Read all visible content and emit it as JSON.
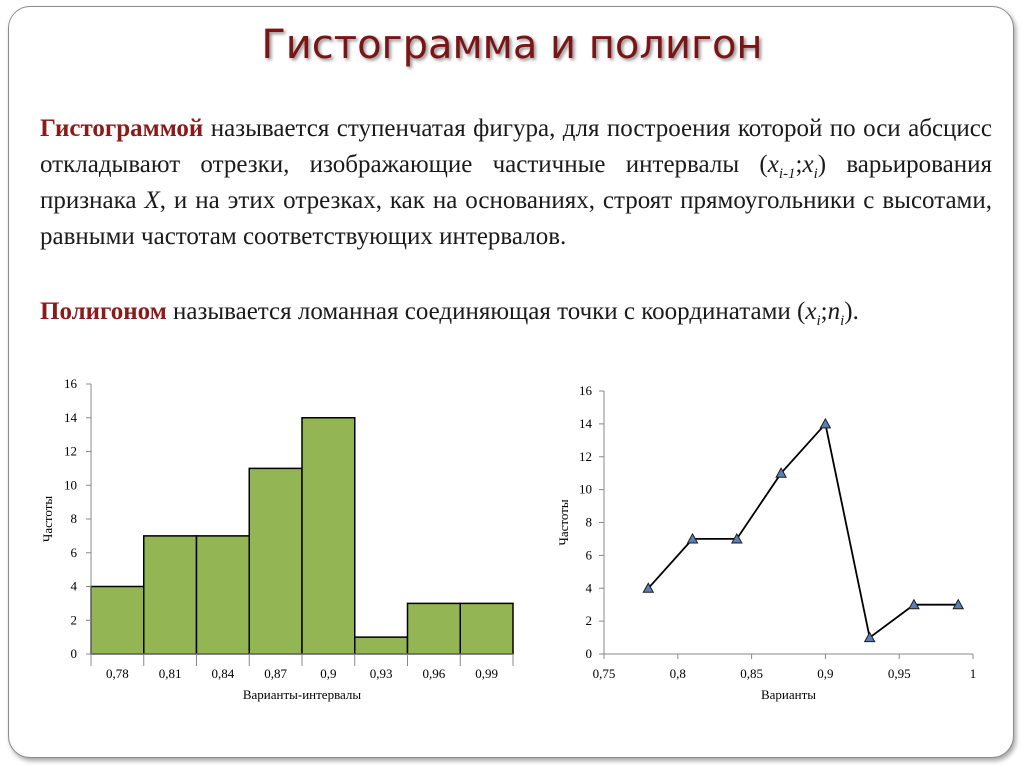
{
  "slide": {
    "title": "Гистограмма и полигон",
    "histogram_def": {
      "term": "Гистограммой",
      "t1": " называется ступенчатая фигура, для построения которой по оси абсцисс откладывают отрезки, изображающие частичные интервалы (",
      "x": "x",
      "sub1": "i-1",
      "t2": ";",
      "sub2": "i",
      "t3": ") варьирования признака ",
      "X": "X",
      "t4": ", и на этих отрезках, как на основаниях, строят прямоугольники с высотами, равными частотам соответствующих интервалов."
    },
    "polygon_def": {
      "term": "Полигоном",
      "t1": " называется ломанная соединяющая точки с координатами (",
      "x": "x",
      "sub_x": "i",
      "t2": ";",
      "n": "n",
      "sub_n": "i",
      "t3": ")."
    }
  },
  "chart_data": [
    {
      "type": "bar",
      "categories": [
        "0,78",
        "0,81",
        "0,84",
        "0,87",
        "0,9",
        "0,93",
        "0,96",
        "0,99"
      ],
      "values": [
        4,
        7,
        7,
        11,
        14,
        1,
        3,
        3
      ],
      "xlabel": "Варианты-интервалы",
      "ylabel": "Частоты",
      "ylim": [
        0,
        16
      ],
      "yticks": [
        "0",
        "2",
        "4",
        "6",
        "8",
        "10",
        "12",
        "14",
        "16"
      ],
      "bar_color": "#93b553",
      "grid": false
    },
    {
      "type": "line",
      "x": [
        0.78,
        0.81,
        0.84,
        0.87,
        0.9,
        0.93,
        0.96,
        0.99
      ],
      "values": [
        4,
        7,
        7,
        11,
        14,
        1,
        3,
        3
      ],
      "xlabel": "Варианты",
      "ylabel": "Частоты",
      "xlim": [
        0.75,
        1
      ],
      "ylim": [
        0,
        16
      ],
      "xticks": [
        "0,75",
        "0,8",
        "0,85",
        "0,9",
        "0,95",
        "1"
      ],
      "yticks": [
        "0",
        "2",
        "4",
        "6",
        "8",
        "10",
        "12",
        "14",
        "16"
      ],
      "marker": "triangle",
      "marker_color": "#5b7fb5",
      "grid": false
    }
  ]
}
